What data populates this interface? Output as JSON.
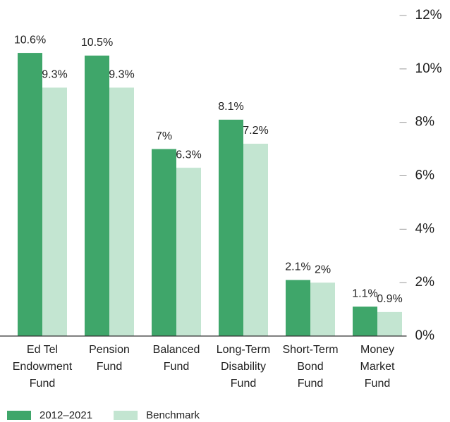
{
  "chart_data": {
    "type": "bar",
    "categories": [
      "Ed Tel\nEndowment\nFund",
      "Pension\nFund",
      "Balanced\nFund",
      "Long-Term\nDisability\nFund",
      "Short-Term\nBond\nFund",
      "Money\nMarket\nFund"
    ],
    "series": [
      {
        "name": "2012–2021",
        "color": "#3fa66a",
        "values": [
          10.6,
          10.5,
          7,
          8.1,
          2.1,
          1.1
        ],
        "value_labels": [
          "10.6%",
          "10.5%",
          "7%",
          "8.1%",
          "2.1%",
          "1.1%"
        ]
      },
      {
        "name": "Benchmark",
        "color": "#c3e5d1",
        "values": [
          9.3,
          9.3,
          6.3,
          7.2,
          2,
          0.9
        ],
        "value_labels": [
          "9.3%",
          "9.3%",
          "6.3%",
          "7.2%",
          "2%",
          "0.9%"
        ]
      }
    ],
    "ylim": [
      0,
      12
    ],
    "yticks": [
      {
        "value": 0,
        "label": "0%"
      },
      {
        "value": 2,
        "label": "2%"
      },
      {
        "value": 4,
        "label": "4%"
      },
      {
        "value": 6,
        "label": "6%"
      },
      {
        "value": 8,
        "label": "8%"
      },
      {
        "value": 10,
        "label": "10%"
      },
      {
        "value": 12,
        "label": "12%"
      }
    ],
    "y_axis_side": "right",
    "legend": "bottom-left"
  }
}
